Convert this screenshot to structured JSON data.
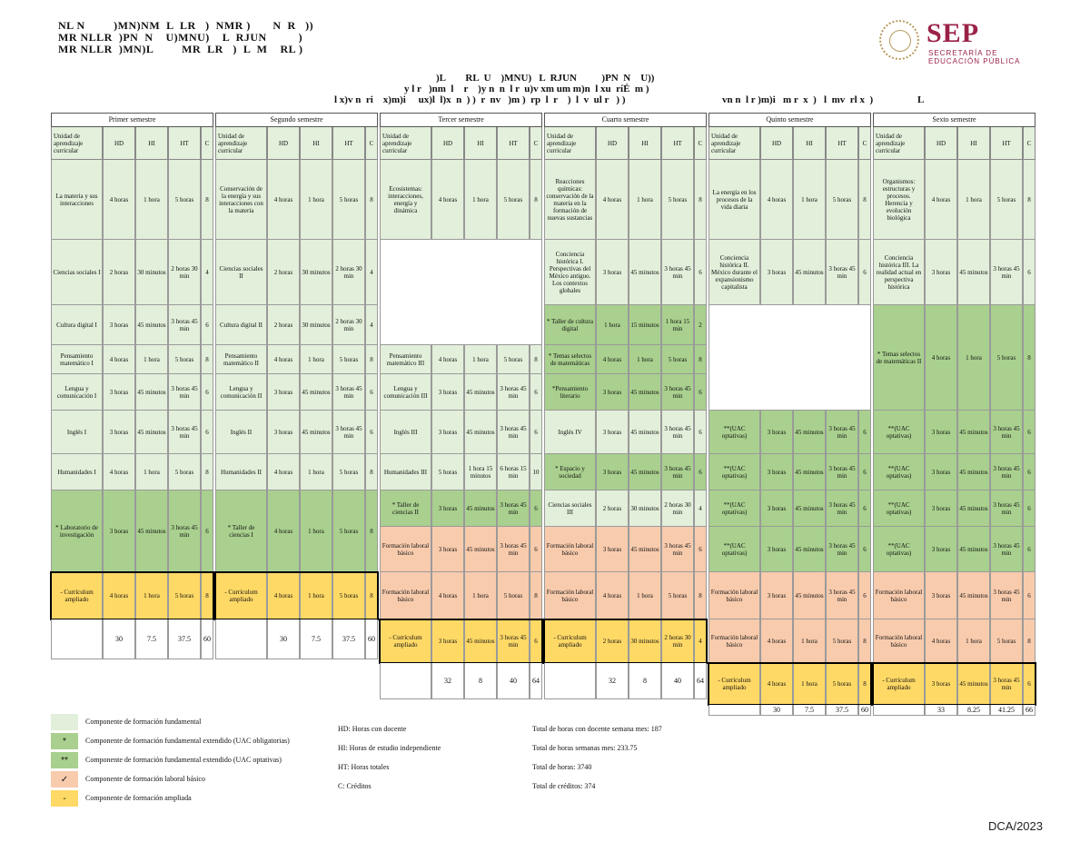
{
  "header": {
    "lines": [
      "NL N         )MN)NM  L  LR   )  NMR )       N  R   ))",
      "MR NLLR  )PN  N    U)MNU)    L  RJUN          )",
      "MR NLLR  )MN)L         MR  LR   )  L  M    RL )"
    ]
  },
  "logo": {
    "name": "SEP",
    "subtitle_1": "SECRETARÍA DE",
    "subtitle_2": "EDUCACIÓN PÚBLICA",
    "color": "#9b2247"
  },
  "title": {
    "t1": ")L        RL  U    )MNU)   L  RJUN          )PN  N    U))",
    "t2": "y l r   )nm  l    r    )y n  n  l r  u)v xm um m)n  l xu  ríÉ  m )",
    "t3": "l x)v n  ri    x)m)i     ux)l  l)x  n  ) )  r  nv   )m )  rp  l  r    )  l  v  ul r   ) )",
    "t4": "vn n  l r )m)i   m r  x  )   l  mv  rl x  )",
    "t5": "L"
  },
  "colheaders": {
    "uac": "Unidad de aprendizaje curricular",
    "hd": "HD",
    "hi": "HI",
    "ht": "HT",
    "c": "C"
  },
  "semesters": [
    {
      "name": "Primer semestre",
      "rows": [
        {
          "uac": "La materia y sus interacciones",
          "hd": "4 horas",
          "hi": "1 hora",
          "ht": "5 horas",
          "c": "8",
          "cls": "lf",
          "h": 88
        },
        {
          "uac": "Ciencias sociales I",
          "hd": "2 horas",
          "hi": "30 minutos",
          "ht": "2 horas 30 min",
          "c": "4",
          "cls": "lf",
          "h": 72
        },
        {
          "uac": "Cultura digital I",
          "hd": "3 horas",
          "hi": "45 minutos",
          "ht": "3 horas 45 min",
          "c": "6",
          "cls": "lf",
          "h": 44
        },
        {
          "uac": "Pensamiento matemático I",
          "hd": "4 horas",
          "hi": "1 hora",
          "ht": "5 horas",
          "c": "8",
          "cls": "lf",
          "h": 32
        },
        {
          "uac": "Lengua y comunicación I",
          "hd": "3 horas",
          "hi": "45 minutos",
          "ht": "3 horas 45 min",
          "c": "6",
          "cls": "lf",
          "h": 40
        },
        {
          "uac": "Inglés I",
          "hd": "3 horas",
          "hi": "45 minutos",
          "ht": "3 horas 45 min",
          "c": "6",
          "cls": "lf",
          "h": 48
        },
        {
          "uac": "Humanidades I",
          "hd": "4 horas",
          "hi": "1 hora",
          "ht": "5 horas",
          "c": "8",
          "cls": "lf",
          "h": 40
        },
        {
          "uac": "* Laboratorio de investigación",
          "hd": "3 horas",
          "hi": "45 minutos",
          "ht": "3 horas 45 min",
          "c": "6",
          "cls": "gr",
          "h": 90
        },
        {
          "uac": "- Currículum ampliado",
          "hd": "4 horas",
          "hi": "1 hora",
          "ht": "5 horas",
          "c": "8",
          "cls": "ye",
          "h": 52,
          "boxed": true
        },
        {
          "uac": "",
          "hd": "30",
          "hi": "7.5",
          "ht": "37.5",
          "c": "60",
          "cls": "wh",
          "h": 44,
          "tot": true
        }
      ]
    },
    {
      "name": "Segundo semestre",
      "rows": [
        {
          "uac": "Conservación de la energía y sus interacciones con la materia",
          "hd": "4 horas",
          "hi": "1 hora",
          "ht": "5 horas",
          "c": "8",
          "cls": "lf",
          "h": 88
        },
        {
          "uac": "Ciencias sociales II",
          "hd": "2 horas",
          "hi": "30 minutos",
          "ht": "2 horas 30 min",
          "c": "4",
          "cls": "lf",
          "h": 72
        },
        {
          "uac": "Cultura digital II",
          "hd": "2 horas",
          "hi": "30 minutos",
          "ht": "2 horas 30 min",
          "c": "4",
          "cls": "lf",
          "h": 44
        },
        {
          "uac": "Pensamiento matemático II",
          "hd": "4 horas",
          "hi": "1 hora",
          "ht": "5 horas",
          "c": "8",
          "cls": "lf",
          "h": 32
        },
        {
          "uac": "Lengua y comunicación II",
          "hd": "3 horas",
          "hi": "45 minutos",
          "ht": "3 horas 45 min",
          "c": "6",
          "cls": "lf",
          "h": 40
        },
        {
          "uac": "Inglés II",
          "hd": "3 horas",
          "hi": "45 minutos",
          "ht": "3 horas 45 min",
          "c": "6",
          "cls": "lf",
          "h": 48
        },
        {
          "uac": "Humanidades II",
          "hd": "4 horas",
          "hi": "1 hora",
          "ht": "5 horas",
          "c": "8",
          "cls": "lf",
          "h": 40
        },
        {
          "uac": "* Taller de ciencias I",
          "hd": "4 horas",
          "hi": "1 hora",
          "ht": "5 horas",
          "c": "8",
          "cls": "gr",
          "h": 90
        },
        {
          "uac": "- Currículum ampliado",
          "hd": "4 horas",
          "hi": "1 hora",
          "ht": "5 horas",
          "c": "8",
          "cls": "ye",
          "h": 52,
          "boxed": true
        },
        {
          "uac": "",
          "hd": "30",
          "hi": "7.5",
          "ht": "37.5",
          "c": "60",
          "cls": "wh",
          "h": 44,
          "tot": true
        }
      ]
    },
    {
      "name": "Tercer semestre",
      "rows": [
        {
          "uac": "Ecosistemas: interacciones, energía y dinámica",
          "hd": "4 horas",
          "hi": "1 hora",
          "ht": "5 horas",
          "c": "8",
          "cls": "lf",
          "h": 88
        },
        {
          "uac": "",
          "hd": "",
          "hi": "",
          "ht": "",
          "c": "",
          "cls": "wh",
          "h": 116,
          "merge": true
        },
        {
          "uac": "Pensamiento matemático III",
          "hd": "4 horas",
          "hi": "1 hora",
          "ht": "5 horas",
          "c": "8",
          "cls": "lf",
          "h": 32
        },
        {
          "uac": "Lengua y comunicación III",
          "hd": "3 horas",
          "hi": "45 minutos",
          "ht": "3 horas 45 min",
          "c": "6",
          "cls": "lf",
          "h": 40
        },
        {
          "uac": "Inglés III",
          "hd": "3 horas",
          "hi": "45 minutos",
          "ht": "3 horas 45 min",
          "c": "6",
          "cls": "lf",
          "h": 48
        },
        {
          "uac": "Humanidades III",
          "hd": "5 horas",
          "hi": "1 hora 15 minutos",
          "ht": "6 horas 15 min",
          "c": "10",
          "cls": "lf",
          "h": 40
        },
        {
          "uac": "* Taller de ciencias II",
          "hd": "3 horas",
          "hi": "45 minutos",
          "ht": "3 horas 45 min",
          "c": "6",
          "cls": "gr",
          "h": 40
        },
        {
          "uac": "Formación laboral básico",
          "hd": "3 horas",
          "hi": "45 minutos",
          "ht": "3 horas 45 min",
          "c": "6",
          "cls": "sa",
          "h": 50
        },
        {
          "uac": "Formación laboral básico",
          "hd": "4 horas",
          "hi": "1 hora",
          "ht": "5 horas",
          "c": "8",
          "cls": "sa",
          "h": 52
        },
        {
          "uac": "- Currículum ampliado",
          "hd": "3 horas",
          "hi": "45 minutos",
          "ht": "3 horas 45 min",
          "c": "6",
          "cls": "ye",
          "h": 48,
          "boxed": true
        },
        {
          "uac": "",
          "hd": "32",
          "hi": "8",
          "ht": "40",
          "c": "64",
          "cls": "wh",
          "h": 40,
          "tot": true
        }
      ]
    },
    {
      "name": "Cuarto semestre",
      "rows": [
        {
          "uac": "Reacciones químicas: conservación de la materia en la formación de nuevas sustancias",
          "hd": "4 horas",
          "hi": "1 hora",
          "ht": "5 horas",
          "c": "8",
          "cls": "lf",
          "h": 88
        },
        {
          "uac": "Conciencia histórica I. Perspectivas del México antiguo. Los contextos globales",
          "hd": "3 horas",
          "hi": "45 minutos",
          "ht": "3 horas 45 min",
          "c": "6",
          "cls": "lf",
          "h": 72
        },
        {
          "uac": "* Taller de cultura digital",
          "hd": "1 hora",
          "hi": "15 minutos",
          "ht": "1 hora 15 min",
          "c": "2",
          "cls": "gr",
          "h": 44
        },
        {
          "uac": "* Temas selectos de matemáticas",
          "hd": "4 horas",
          "hi": "1 hora",
          "ht": "5 horas",
          "c": "8",
          "cls": "gr",
          "h": 32
        },
        {
          "uac": "*Pensamiento literario",
          "hd": "3 horas",
          "hi": "45 minutos",
          "ht": "3 horas 45 min",
          "c": "6",
          "cls": "gr",
          "h": 40
        },
        {
          "uac": "Inglés IV",
          "hd": "3 horas",
          "hi": "45 minutos",
          "ht": "3 horas 45 min",
          "c": "6",
          "cls": "lf",
          "h": 48
        },
        {
          "uac": "* Espacio y sociedad",
          "hd": "3 horas",
          "hi": "45 minutos",
          "ht": "3 horas 45 min",
          "c": "6",
          "cls": "gr",
          "h": 40
        },
        {
          "uac": "Ciencias sociales III",
          "hd": "2 horas",
          "hi": "30 minutos",
          "ht": "2 horas 30 min",
          "c": "4",
          "cls": "lf",
          "h": 40
        },
        {
          "uac": "Formación laboral básico",
          "hd": "3 horas",
          "hi": "45 minutos",
          "ht": "3 horas 45 min",
          "c": "6",
          "cls": "sa",
          "h": 50
        },
        {
          "uac": "Formación laboral básico",
          "hd": "4 horas",
          "hi": "1 hora",
          "ht": "5 horas",
          "c": "8",
          "cls": "sa",
          "h": 52
        },
        {
          "uac": "- Currículum ampliado",
          "hd": "2 horas",
          "hi": "30 minutos",
          "ht": "2 horas 30 min",
          "c": "4",
          "cls": "ye",
          "h": 48,
          "boxed": true
        },
        {
          "uac": "",
          "hd": "32",
          "hi": "8",
          "ht": "40",
          "c": "64",
          "cls": "wh",
          "h": 40,
          "tot": true
        }
      ]
    },
    {
      "name": "Quinto semestre",
      "rows": [
        {
          "uac": "La energía en los procesos de la vida diaria",
          "hd": "4 horas",
          "hi": "1 hora",
          "ht": "5 horas",
          "c": "8",
          "cls": "lf",
          "h": 88
        },
        {
          "uac": "Conciencia histórica II. México durante el expansionismo capitalista",
          "hd": "3 horas",
          "hi": "45 minutos",
          "ht": "3 horas 45 min",
          "c": "6",
          "cls": "lf",
          "h": 72
        },
        {
          "uac": "",
          "hd": "",
          "hi": "",
          "ht": "",
          "c": "",
          "cls": "wh",
          "h": 116,
          "merge": true
        },
        {
          "uac": "**(UAC optativas)",
          "hd": "3 horas",
          "hi": "45 minutos",
          "ht": "3 horas 45 min",
          "c": "6",
          "cls": "gr",
          "h": 48
        },
        {
          "uac": "**(UAC optativas)",
          "hd": "3 horas",
          "hi": "45 minutos",
          "ht": "3 horas 45 min",
          "c": "6",
          "cls": "gr",
          "h": 40
        },
        {
          "uac": "**(UAC optativas)",
          "hd": "3 horas",
          "hi": "45 minutos",
          "ht": "3 horas 45 min",
          "c": "6",
          "cls": "gr",
          "h": 40
        },
        {
          "uac": "**(UAC optativas)",
          "hd": "3 horas",
          "hi": "45 minutos",
          "ht": "3 horas 45 min",
          "c": "6",
          "cls": "gr",
          "h": 50
        },
        {
          "uac": "Formación laboral básico",
          "hd": "3 horas",
          "hi": "45 minutos",
          "ht": "3 horas 45 min",
          "c": "6",
          "cls": "sa",
          "h": 52
        },
        {
          "uac": "Formación laboral básico",
          "hd": "4 horas",
          "hi": "1 hora",
          "ht": "5 horas",
          "c": "8",
          "cls": "sa",
          "h": 48
        },
        {
          "uac": "- Currículum ampliado",
          "hd": "4 horas",
          "hi": "1 hora",
          "ht": "5 horas",
          "c": "8",
          "cls": "ye",
          "h": 46,
          "boxed": true
        },
        {
          "uac": "",
          "hd": "30",
          "hi": "7.5",
          "ht": "37.5",
          "c": "60",
          "cls": "wh",
          "h": 12,
          "tot": true
        }
      ]
    },
    {
      "name": "Sexto semestre",
      "rows": [
        {
          "uac": "Organismos: estructuras y procesos. Herencia y evolución biológica",
          "hd": "4 horas",
          "hi": "1 hora",
          "ht": "5 horas",
          "c": "8",
          "cls": "lf",
          "h": 88
        },
        {
          "uac": "Conciencia histórica III. La realidad actual en perspectiva histórica",
          "hd": "3 horas",
          "hi": "45 minutos",
          "ht": "3 horas 45 min",
          "c": "6",
          "cls": "lf",
          "h": 72
        },
        {
          "uac": "* Temas selectos de matemáticas II",
          "hd": "4 horas",
          "hi": "1 hora",
          "ht": "5 horas",
          "c": "8",
          "cls": "gr",
          "h": 116
        },
        {
          "uac": "**(UAC optativas)",
          "hd": "3 horas",
          "hi": "45 minutos",
          "ht": "3 horas 45 min",
          "c": "6",
          "cls": "gr",
          "h": 48
        },
        {
          "uac": "**(UAC optativas)",
          "hd": "3 horas",
          "hi": "45 minutos",
          "ht": "3 horas 45 min",
          "c": "6",
          "cls": "gr",
          "h": 40
        },
        {
          "uac": "**(UAC optativas)",
          "hd": "3 horas",
          "hi": "45 minutos",
          "ht": "3 horas 45 min",
          "c": "6",
          "cls": "gr",
          "h": 40
        },
        {
          "uac": "**(UAC optativas)",
          "hd": "3 horas",
          "hi": "45 minutos",
          "ht": "3 horas 45 min",
          "c": "6",
          "cls": "gr",
          "h": 50
        },
        {
          "uac": "Formación laboral básico",
          "hd": "3 horas",
          "hi": "45 minutos",
          "ht": "3 horas 45 min",
          "c": "6",
          "cls": "sa",
          "h": 52
        },
        {
          "uac": "Formación laboral básico",
          "hd": "4 horas",
          "hi": "1 hora",
          "ht": "5 horas",
          "c": "8",
          "cls": "sa",
          "h": 48
        },
        {
          "uac": "- Currículum ampliado",
          "hd": "3 horas",
          "hi": "45 minutos",
          "ht": "3 horas 45 min",
          "c": "6",
          "cls": "ye",
          "h": 46,
          "boxed": true
        },
        {
          "uac": "",
          "hd": "33",
          "hi": "8.25",
          "ht": "41.25",
          "c": "66",
          "cls": "wh",
          "h": 12,
          "tot": true
        }
      ]
    }
  ],
  "legend": [
    {
      "mark": "",
      "color": "#e2efda",
      "text": "Componente de formación fundamental"
    },
    {
      "mark": "*",
      "color": "#a9d08e",
      "text": "Componente de formación fundamental extendido (UAC obligatorias)"
    },
    {
      "mark": "**",
      "color": "#a9d08e",
      "text": "Componente de formación fundamental extendido (UAC optativas)"
    },
    {
      "mark": "✓",
      "color": "#f8cbad",
      "text": "Componente de formación laboral básico"
    },
    {
      "mark": "-",
      "color": "#ffd966",
      "text": "Componente de formación ampliada"
    }
  ],
  "abbrev": [
    "HD: Horas con docente",
    "HI: Horas de estudio independiente",
    "HT: Horas totales",
    "C: Créditos"
  ],
  "totals": [
    "Total de horas con docente semana mes: 187",
    "Total de horas semanas mes: 233.75",
    "Total de horas: 3740",
    "Total de créditos: 374"
  ],
  "footer": "DCA/2023"
}
